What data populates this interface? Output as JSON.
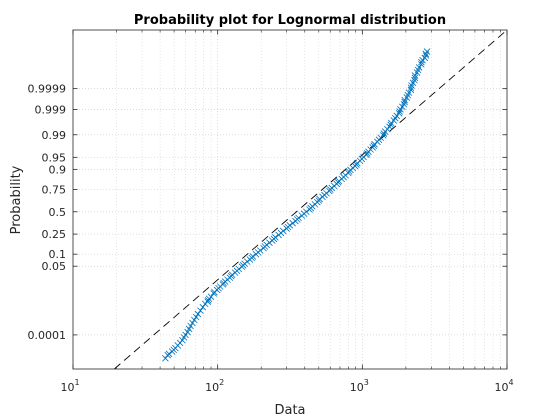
{
  "chart_data": {
    "type": "scatter",
    "title": "Probability plot for Lognormal distribution",
    "xlabel": "Data",
    "ylabel": "Probability",
    "x_scale": "log",
    "xlim": [
      10,
      10000
    ],
    "x_ticks": [
      {
        "base": "10",
        "exp": "1",
        "value": 10
      },
      {
        "base": "10",
        "exp": "2",
        "value": 100
      },
      {
        "base": "10",
        "exp": "3",
        "value": 1000
      },
      {
        "base": "10",
        "exp": "4",
        "value": 10000
      }
    ],
    "y_scale": "normal-probability",
    "ylim": [
      1.02e-06,
      0.99999998
    ],
    "y_ticks": [
      {
        "label": "0.0001",
        "value": 0.0001
      },
      {
        "label": "0.05",
        "value": 0.05
      },
      {
        "label": "0.1",
        "value": 0.1
      },
      {
        "label": "0.25",
        "value": 0.25
      },
      {
        "label": "0.5",
        "value": 0.5
      },
      {
        "label": "0.75",
        "value": 0.75
      },
      {
        "label": "0.9",
        "value": 0.9
      },
      {
        "label": "0.95",
        "value": 0.95
      },
      {
        "label": "0.99",
        "value": 0.99
      },
      {
        "label": "0.999",
        "value": 0.999
      },
      {
        "label": "0.9999",
        "value": 0.9999
      }
    ],
    "grid": true,
    "minor_grid": true,
    "marker": "x",
    "marker_color": "#0072BD",
    "reference_line": {
      "style": "dashed",
      "color": "#000000",
      "x": [
        19.3,
        10000
      ],
      "y": [
        1.02e-06,
        0.99999998
      ]
    },
    "series": [
      {
        "x": [
          43.5,
          45.2,
          48.5,
          51.0,
          53.0,
          55.0,
          57.0,
          58.5,
          60.0,
          62.0,
          63.5,
          65.0,
          67.0,
          69.0,
          71.0,
          73.0,
          76.0,
          79.0,
          82.0,
          86.0,
          90.0,
          94.0,
          99.0,
          104.0,
          110.0,
          117.0,
          124.0,
          132.0,
          140.0,
          150.0,
          160.0,
          172.0,
          184.0,
          197.0,
          212.0,
          228.0,
          245.0,
          264.0,
          284.0,
          306.0,
          330.0,
          355.0,
          382.0,
          410.0,
          440.0,
          470.0,
          500.0,
          530.0,
          565.0,
          600.0,
          640.0,
          680.0,
          720.0,
          765.0,
          810.0,
          860.0,
          910.0,
          965.0,
          1020.0,
          1080.0,
          1140.0,
          1200.0,
          1270.0,
          1340.0,
          1410.0,
          1490.0,
          1570.0,
          1650.0,
          1730.0,
          1810.0,
          1890.0,
          1960.0,
          2030.0,
          2100.0,
          2170.0,
          2240.0,
          2310.0,
          2390.0,
          2470.0,
          2560.0,
          2700.0,
          2800.0
        ],
        "y": [
          4.8e-06,
          7.4e-06,
          1.2e-05,
          1.9e-05,
          2.7e-05,
          3.7e-05,
          5.2e-05,
          7.4e-05,
          0.0001,
          0.00014,
          0.0002,
          0.00028,
          0.00039,
          0.00054,
          0.00074,
          0.001,
          0.00141,
          0.00197,
          0.0027,
          0.00375,
          0.0051,
          0.0068,
          0.0091,
          0.012,
          0.0156,
          0.0202,
          0.026,
          0.033,
          0.042,
          0.053,
          0.066,
          0.082,
          0.1,
          0.121,
          0.147,
          0.175,
          0.206,
          0.242,
          0.281,
          0.323,
          0.365,
          0.409,
          0.454,
          0.5,
          0.545,
          0.59,
          0.633,
          0.674,
          0.712,
          0.749,
          0.782,
          0.813,
          0.84,
          0.865,
          0.888,
          0.907,
          0.923,
          0.938,
          0.951,
          0.961,
          0.97,
          0.977,
          0.9827,
          0.9873,
          0.9909,
          0.9937,
          0.9957,
          0.9971,
          0.9981,
          0.99878,
          0.99924,
          0.99954,
          0.99972,
          0.99984,
          0.99991,
          0.999951,
          0.999974,
          0.999987,
          0.9999935,
          0.9999969,
          0.99999835,
          0.99999935
        ]
      }
    ]
  }
}
